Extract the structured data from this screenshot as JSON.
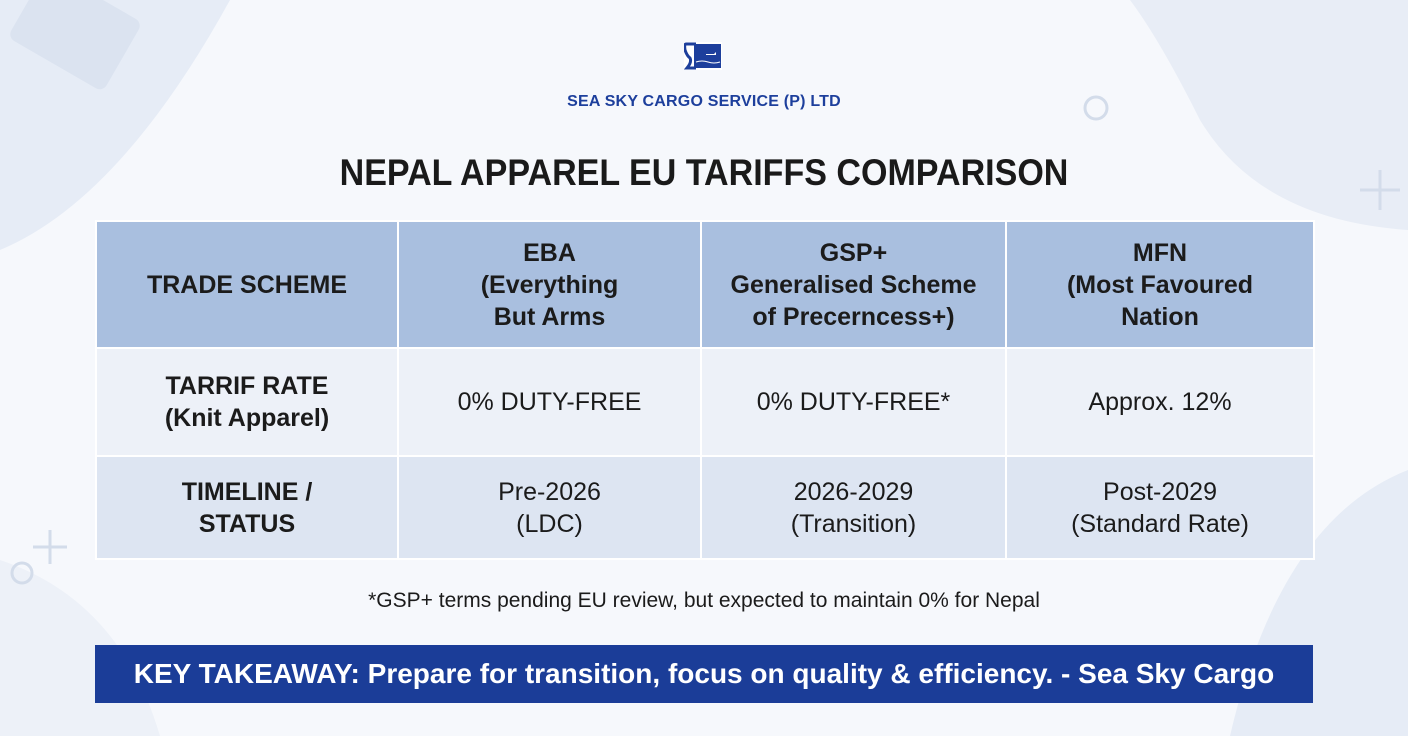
{
  "company": {
    "name": "SEA SKY CARGO SERVICE (P) LTD",
    "brand_color": "#1d3f9c"
  },
  "title": "NEPAL APPAREL EU TARIFFS COMPARISON",
  "table": {
    "header": [
      [
        "TRADE SCHEME"
      ],
      [
        "EBA",
        "(Everything",
        "But Arms"
      ],
      [
        "GSP+",
        "Generalised Scheme",
        "of Precerncess+)"
      ],
      [
        "MFN",
        "(Most Favoured",
        "Nation"
      ]
    ],
    "rows": [
      {
        "label": [
          "TARRIF RATE",
          "(Knit Apparel)"
        ],
        "cells": [
          [
            "0% DUTY-FREE"
          ],
          [
            "0% DUTY-FREE*"
          ],
          [
            "Approx. 12%"
          ]
        ]
      },
      {
        "label": [
          "TIMELINE /",
          "STATUS"
        ],
        "cells": [
          [
            "Pre-2026",
            "(LDC)"
          ],
          [
            "2026-2029",
            "(Transition)"
          ],
          [
            "Post-2029",
            "(Standard Rate)"
          ]
        ]
      }
    ]
  },
  "footnote": "*GSP+ terms pending EU review, but expected to maintain 0% for Nepal",
  "takeaway": "KEY TAKEAWAY: Prepare for transition, focus on quality & efficiency. - Sea Sky Cargo"
}
